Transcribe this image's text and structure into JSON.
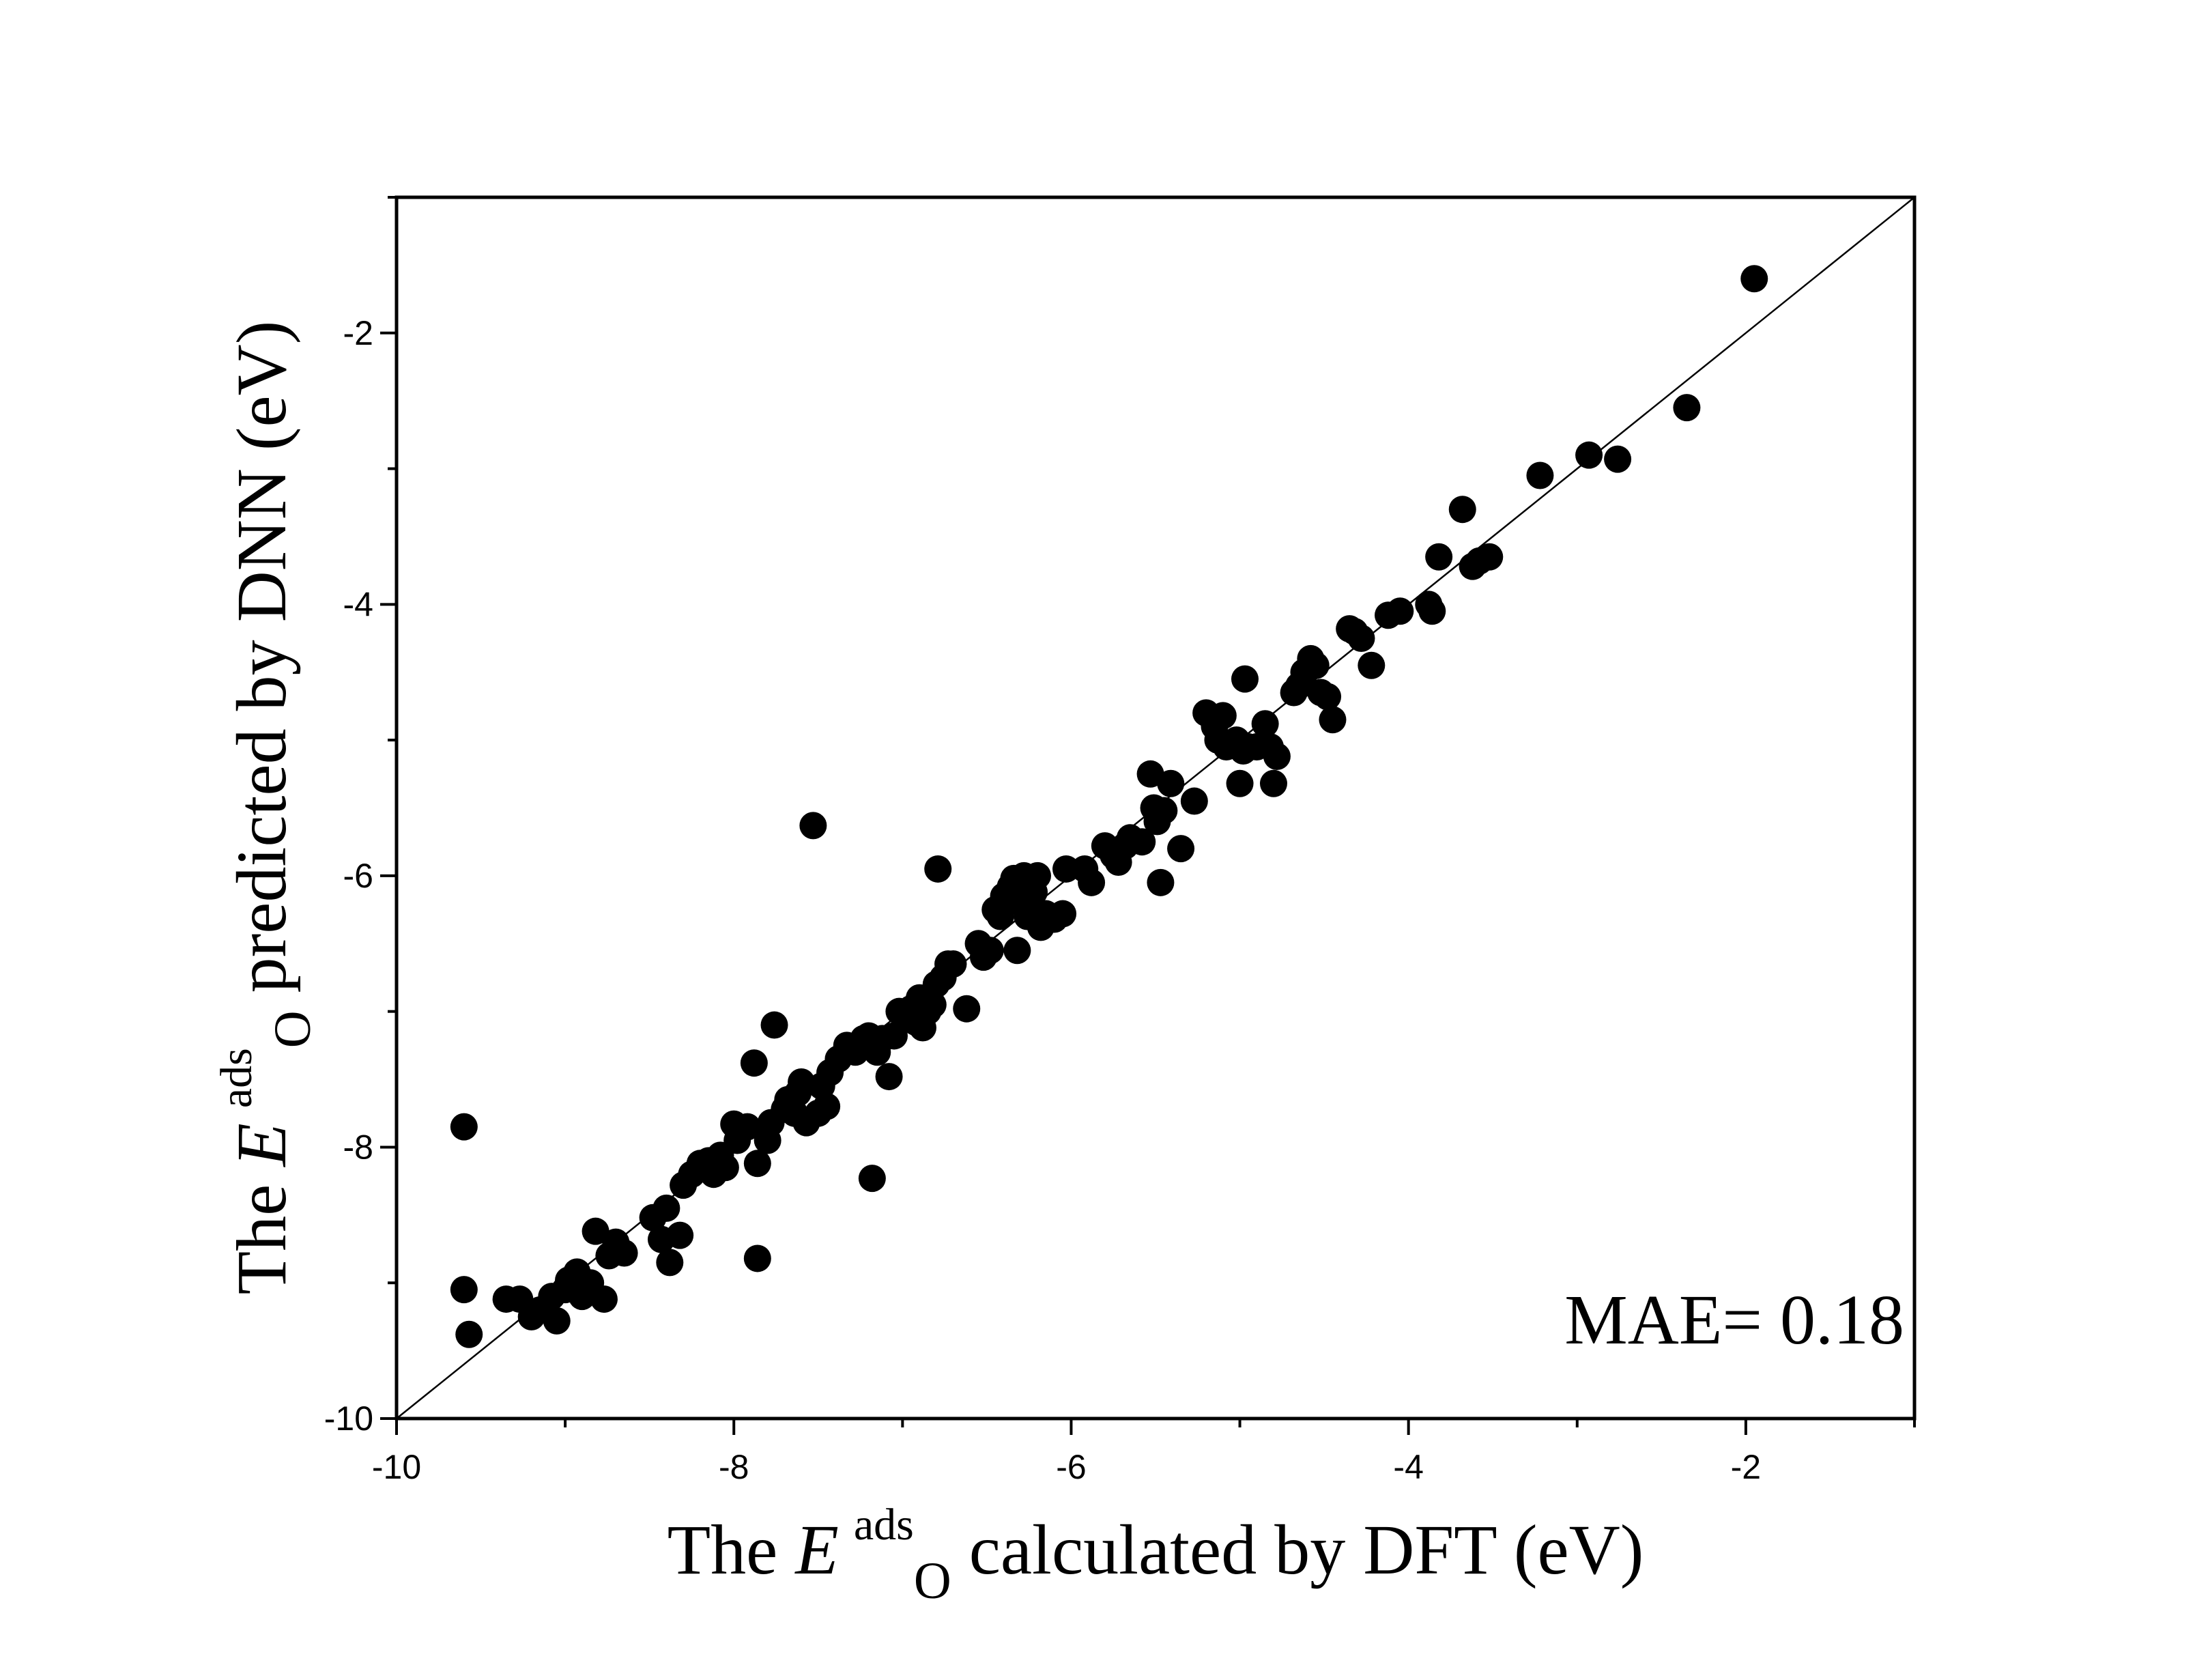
{
  "chart_data": {
    "type": "scatter",
    "xlabel": {
      "prefix": "The ",
      "italic": "E",
      "sup": "ads",
      "sub": "O",
      "suffix": " calculated by DFT (eV)"
    },
    "ylabel": {
      "prefix": "The ",
      "italic": "E",
      "sup": "ads",
      "sub": "O",
      "suffix": " predicted by DNN (eV)"
    },
    "xlim": [
      -10,
      -1
    ],
    "ylim": [
      -10,
      -1
    ],
    "xticks": [
      -10,
      -8,
      -6,
      -4,
      -2
    ],
    "yticks": [
      -10,
      -8,
      -6,
      -4,
      -2
    ],
    "xtick_labels": [
      "-10",
      "-8",
      "-6",
      "-4",
      "-2"
    ],
    "ytick_labels": [
      "-10",
      "-8",
      "-6",
      "-4",
      "-2"
    ],
    "grid": false,
    "reference_line": "y = x",
    "annotation": "MAE= 0.18",
    "series": [
      {
        "marker_color": "#000000",
        "points": [
          [
            -9.6,
            -7.85
          ],
          [
            -9.6,
            -9.05
          ],
          [
            -9.57,
            -9.38
          ],
          [
            -9.35,
            -9.12
          ],
          [
            -9.27,
            -9.12
          ],
          [
            -9.2,
            -9.25
          ],
          [
            -9.15,
            -9.2
          ],
          [
            -9.08,
            -9.1
          ],
          [
            -9.05,
            -9.28
          ],
          [
            -9.0,
            -9.05
          ],
          [
            -8.98,
            -8.98
          ],
          [
            -8.93,
            -8.92
          ],
          [
            -8.9,
            -9.1
          ],
          [
            -8.85,
            -9.0
          ],
          [
            -8.82,
            -8.62
          ],
          [
            -8.77,
            -9.12
          ],
          [
            -8.74,
            -8.8
          ],
          [
            -8.7,
            -8.7
          ],
          [
            -8.65,
            -8.78
          ],
          [
            -8.48,
            -8.52
          ],
          [
            -8.43,
            -8.68
          ],
          [
            -8.4,
            -8.45
          ],
          [
            -8.38,
            -8.85
          ],
          [
            -8.32,
            -8.65
          ],
          [
            -8.3,
            -8.28
          ],
          [
            -8.25,
            -8.2
          ],
          [
            -8.2,
            -8.12
          ],
          [
            -8.15,
            -8.1
          ],
          [
            -8.12,
            -8.2
          ],
          [
            -8.08,
            -8.06
          ],
          [
            -8.05,
            -8.15
          ],
          [
            -8.0,
            -7.83
          ],
          [
            -7.98,
            -7.95
          ],
          [
            -7.92,
            -7.85
          ],
          [
            -7.88,
            -7.38
          ],
          [
            -7.86,
            -8.12
          ],
          [
            -7.86,
            -8.82
          ],
          [
            -7.8,
            -7.95
          ],
          [
            -7.78,
            -7.82
          ],
          [
            -7.76,
            -7.1
          ],
          [
            -7.7,
            -7.72
          ],
          [
            -7.68,
            -7.65
          ],
          [
            -7.64,
            -7.75
          ],
          [
            -7.62,
            -7.6
          ],
          [
            -7.6,
            -7.52
          ],
          [
            -7.57,
            -7.82
          ],
          [
            -7.53,
            -5.63
          ],
          [
            -7.5,
            -7.75
          ],
          [
            -7.48,
            -7.55
          ],
          [
            -7.45,
            -7.7
          ],
          [
            -7.43,
            -7.45
          ],
          [
            -7.38,
            -7.35
          ],
          [
            -7.33,
            -7.25
          ],
          [
            -7.28,
            -7.3
          ],
          [
            -7.23,
            -7.2
          ],
          [
            -7.2,
            -7.18
          ],
          [
            -7.18,
            -8.23
          ],
          [
            -7.15,
            -7.3
          ],
          [
            -7.12,
            -7.2
          ],
          [
            -7.08,
            -7.48
          ],
          [
            -7.05,
            -7.18
          ],
          [
            -7.02,
            -7.0
          ],
          [
            -6.98,
            -7.05
          ],
          [
            -6.95,
            -6.98
          ],
          [
            -6.92,
            -7.08
          ],
          [
            -6.9,
            -6.9
          ],
          [
            -6.88,
            -7.12
          ],
          [
            -6.85,
            -7.0
          ],
          [
            -6.82,
            -6.95
          ],
          [
            -6.8,
            -6.8
          ],
          [
            -6.79,
            -5.95
          ],
          [
            -6.76,
            -6.75
          ],
          [
            -6.73,
            -6.65
          ],
          [
            -6.7,
            -6.65
          ],
          [
            -6.62,
            -6.98
          ],
          [
            -6.55,
            -6.5
          ],
          [
            -6.52,
            -6.6
          ],
          [
            -6.48,
            -6.55
          ],
          [
            -6.45,
            -6.25
          ],
          [
            -6.42,
            -6.3
          ],
          [
            -6.4,
            -6.15
          ],
          [
            -6.38,
            -6.2
          ],
          [
            -6.36,
            -6.08
          ],
          [
            -6.34,
            -6.02
          ],
          [
            -6.32,
            -6.55
          ],
          [
            -6.3,
            -6.15
          ],
          [
            -6.28,
            -6.0
          ],
          [
            -6.26,
            -6.3
          ],
          [
            -6.24,
            -6.2
          ],
          [
            -6.22,
            -6.12
          ],
          [
            -6.2,
            -6.0
          ],
          [
            -6.18,
            -6.38
          ],
          [
            -6.15,
            -6.28
          ],
          [
            -6.1,
            -6.32
          ],
          [
            -6.05,
            -6.28
          ],
          [
            -6.03,
            -5.95
          ],
          [
            -5.92,
            -5.95
          ],
          [
            -5.88,
            -6.05
          ],
          [
            -5.8,
            -5.78
          ],
          [
            -5.75,
            -5.85
          ],
          [
            -5.72,
            -5.9
          ],
          [
            -5.68,
            -5.78
          ],
          [
            -5.65,
            -5.72
          ],
          [
            -5.58,
            -5.75
          ],
          [
            -5.53,
            -5.25
          ],
          [
            -5.51,
            -5.5
          ],
          [
            -5.49,
            -5.6
          ],
          [
            -5.47,
            -6.05
          ],
          [
            -5.45,
            -5.52
          ],
          [
            -5.41,
            -5.32
          ],
          [
            -5.35,
            -5.8
          ],
          [
            -5.27,
            -5.45
          ],
          [
            -5.2,
            -4.8
          ],
          [
            -5.15,
            -4.9
          ],
          [
            -5.13,
            -5.0
          ],
          [
            -5.1,
            -4.82
          ],
          [
            -5.08,
            -5.05
          ],
          [
            -5.02,
            -5.0
          ],
          [
            -5.0,
            -5.32
          ],
          [
            -4.98,
            -5.08
          ],
          [
            -4.97,
            -4.55
          ],
          [
            -4.95,
            -5.05
          ],
          [
            -4.9,
            -5.05
          ],
          [
            -4.85,
            -4.88
          ],
          [
            -4.82,
            -5.05
          ],
          [
            -4.8,
            -5.32
          ],
          [
            -4.78,
            -5.12
          ],
          [
            -4.68,
            -4.65
          ],
          [
            -4.65,
            -4.6
          ],
          [
            -4.62,
            -4.5
          ],
          [
            -4.58,
            -4.4
          ],
          [
            -4.55,
            -4.45
          ],
          [
            -4.52,
            -4.65
          ],
          [
            -4.48,
            -4.68
          ],
          [
            -4.45,
            -4.85
          ],
          [
            -4.35,
            -4.18
          ],
          [
            -4.32,
            -4.2
          ],
          [
            -4.28,
            -4.25
          ],
          [
            -4.22,
            -4.45
          ],
          [
            -4.12,
            -4.08
          ],
          [
            -4.05,
            -4.05
          ],
          [
            -3.88,
            -4.0
          ],
          [
            -3.86,
            -4.05
          ],
          [
            -3.82,
            -3.65
          ],
          [
            -3.68,
            -3.3
          ],
          [
            -3.62,
            -3.72
          ],
          [
            -3.58,
            -3.68
          ],
          [
            -3.52,
            -3.65
          ],
          [
            -3.22,
            -3.05
          ],
          [
            -2.93,
            -2.9
          ],
          [
            -2.76,
            -2.93
          ],
          [
            -2.35,
            -2.55
          ],
          [
            -1.95,
            -1.6
          ]
        ]
      }
    ]
  }
}
